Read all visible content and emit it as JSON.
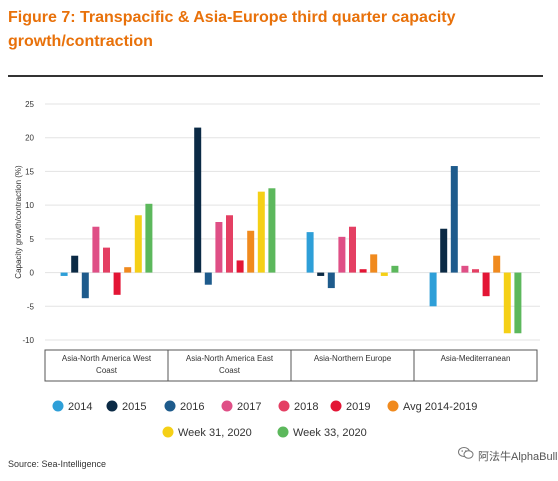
{
  "figure": {
    "title": "Figure 7: Transpacific & Asia-Europe third quarter capacity growth/contraction",
    "source": "Source: Sea-Intelligence",
    "watermark": "阿法牛AlphaBull"
  },
  "chart_data": {
    "type": "bar",
    "title": "",
    "ylabel": "Capacity growth/contraction (%)",
    "ylim": [
      -10,
      25
    ],
    "yticks": [
      25,
      20,
      15,
      10,
      5,
      0,
      -5,
      -10
    ],
    "grid": true,
    "legend_position": "bottom",
    "categories": [
      [
        "Asia-North America West",
        "Coast"
      ],
      [
        "Asia-North America East",
        "Coast"
      ],
      [
        "Asia-Northern Europe"
      ],
      [
        "Asia-Mediterranean"
      ]
    ],
    "series": [
      {
        "name": "2014",
        "color": "#2e9fd8",
        "values": [
          -0.5,
          0,
          6,
          -5
        ]
      },
      {
        "name": "2015",
        "color": "#0b2a45",
        "values": [
          2.5,
          21.5,
          -0.5,
          6.5
        ]
      },
      {
        "name": "2016",
        "color": "#1e5b8c",
        "values": [
          -3.8,
          -1.8,
          -2.3,
          15.8
        ]
      },
      {
        "name": "2017",
        "color": "#df4f86",
        "values": [
          6.8,
          7.5,
          5.3,
          1
        ]
      },
      {
        "name": "2018",
        "color": "#e43f63",
        "values": [
          3.7,
          8.5,
          6.8,
          0.5
        ]
      },
      {
        "name": "2019",
        "color": "#e31535",
        "values": [
          -3.3,
          1.8,
          0.5,
          -3.5
        ]
      },
      {
        "name": "Avg 2014-2019",
        "color": "#f08a1e",
        "values": [
          0.8,
          6.2,
          2.7,
          2.5
        ]
      },
      {
        "name": "Week 31, 2020",
        "color": "#f5d016",
        "values": [
          8.5,
          12,
          -0.5,
          -9
        ]
      },
      {
        "name": "Week 33, 2020",
        "color": "#5cb85c",
        "values": [
          10.2,
          12.5,
          1,
          -9
        ]
      }
    ]
  }
}
